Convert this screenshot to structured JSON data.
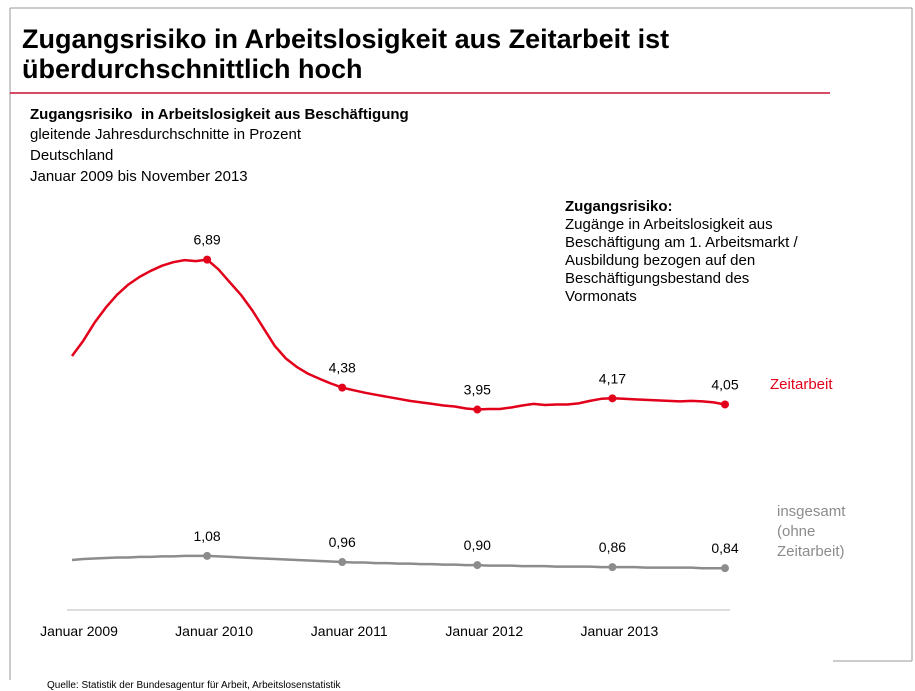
{
  "chart_data": {
    "type": "line",
    "title": "Zugangsrisiko in Arbeitslosigkeit aus Zeitarbeit ist überdurchschnittlich hoch",
    "subtitle": "Zugangsrisiko  in Arbeitslosigkeit aus Beschäftigung",
    "notes": [
      "gleitende Jahresdurchschnitte in Prozent",
      "Deutschland",
      "Januar 2009 bis November 2013"
    ],
    "annotation": {
      "title": "Zugangsrisiko:",
      "text": "Zugänge in Arbeitslosigkeit aus Beschäftigung am 1. Arbeitsmarkt / Ausbildung bezogen auf den Beschäftigungsbestand des Vormonats"
    },
    "source": "Quelle: Statistik der Bundesagentur für Arbeit, Arbeitslosenstatistik",
    "categories": [
      "Januar 2009",
      null,
      null,
      null,
      null,
      null,
      null,
      null,
      null,
      null,
      null,
      null,
      "Januar 2010",
      null,
      null,
      null,
      null,
      null,
      null,
      null,
      null,
      null,
      null,
      null,
      "Januar 2011",
      null,
      null,
      null,
      null,
      null,
      null,
      null,
      null,
      null,
      null,
      null,
      "Januar 2012",
      null,
      null,
      null,
      null,
      null,
      null,
      null,
      null,
      null,
      null,
      null,
      "Januar 2013",
      null,
      null,
      null,
      null,
      null,
      null,
      null,
      null,
      null,
      null
    ],
    "ylim": [
      0,
      7.5
    ],
    "series": [
      {
        "name": "Zeitarbeit",
        "color": "#e2001a",
        "values": [
          5.0,
          5.3,
          5.65,
          5.95,
          6.2,
          6.4,
          6.55,
          6.67,
          6.77,
          6.84,
          6.88,
          6.86,
          6.89,
          6.7,
          6.45,
          6.2,
          5.9,
          5.55,
          5.2,
          4.95,
          4.78,
          4.65,
          4.55,
          4.46,
          4.38,
          4.33,
          4.28,
          4.24,
          4.2,
          4.16,
          4.12,
          4.09,
          4.06,
          4.03,
          4.01,
          3.97,
          3.95,
          3.96,
          3.96,
          3.99,
          4.03,
          4.06,
          4.04,
          4.05,
          4.05,
          4.07,
          4.12,
          4.16,
          4.17,
          4.16,
          4.15,
          4.14,
          4.13,
          4.12,
          4.11,
          4.12,
          4.11,
          4.09,
          4.05
        ],
        "value_labels": [
          null,
          null,
          null,
          null,
          null,
          null,
          null,
          null,
          null,
          null,
          null,
          null,
          "6,89",
          null,
          null,
          null,
          null,
          null,
          null,
          null,
          null,
          null,
          null,
          null,
          "4,38",
          null,
          null,
          null,
          null,
          null,
          null,
          null,
          null,
          null,
          null,
          null,
          "3,95",
          null,
          null,
          null,
          null,
          null,
          null,
          null,
          null,
          null,
          null,
          null,
          "4,17",
          null,
          null,
          null,
          null,
          null,
          null,
          null,
          null,
          null,
          "4,05"
        ]
      },
      {
        "name": "insgesamt (ohne Zeitarbeit)",
        "color": "#8c8c8c",
        "values": [
          1.0,
          1.02,
          1.03,
          1.04,
          1.05,
          1.05,
          1.06,
          1.06,
          1.07,
          1.07,
          1.08,
          1.08,
          1.08,
          1.07,
          1.06,
          1.05,
          1.04,
          1.03,
          1.02,
          1.01,
          1.0,
          0.99,
          0.98,
          0.97,
          0.96,
          0.95,
          0.95,
          0.94,
          0.94,
          0.93,
          0.93,
          0.92,
          0.92,
          0.91,
          0.91,
          0.9,
          0.9,
          0.89,
          0.89,
          0.89,
          0.88,
          0.88,
          0.88,
          0.87,
          0.87,
          0.87,
          0.87,
          0.86,
          0.86,
          0.86,
          0.86,
          0.85,
          0.85,
          0.85,
          0.85,
          0.85,
          0.84,
          0.84,
          0.84
        ],
        "value_labels": [
          null,
          null,
          null,
          null,
          null,
          null,
          null,
          null,
          null,
          null,
          null,
          null,
          "1,08",
          null,
          null,
          null,
          null,
          null,
          null,
          null,
          null,
          null,
          null,
          null,
          "0,96",
          null,
          null,
          null,
          null,
          null,
          null,
          null,
          null,
          null,
          null,
          null,
          "0,90",
          null,
          null,
          null,
          null,
          null,
          null,
          null,
          null,
          null,
          null,
          null,
          "0,86",
          null,
          null,
          null,
          null,
          null,
          null,
          null,
          null,
          null,
          "0,84"
        ]
      }
    ]
  }
}
